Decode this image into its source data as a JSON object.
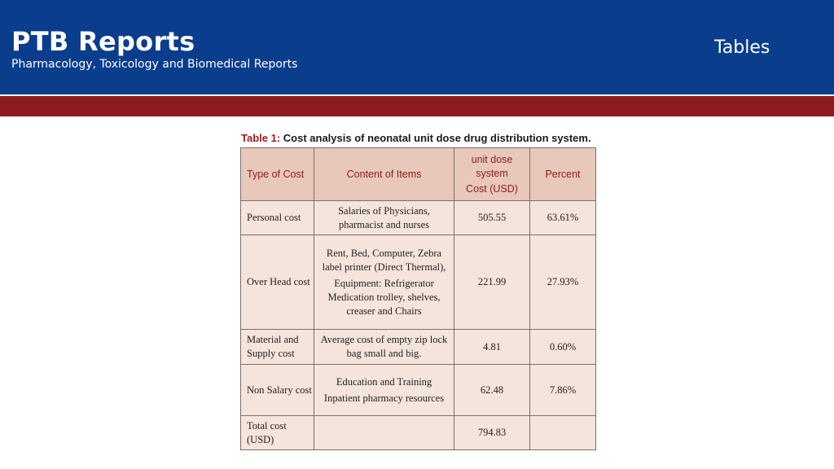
{
  "header": {
    "brand_title": "PTB Reports",
    "brand_subtitle": "Pharmacology, Toxicology and Biomedical Reports",
    "section_title": "Tables",
    "colors": {
      "header_blue": "#0a3d8c",
      "band_red": "#8e1b1f"
    }
  },
  "table": {
    "caption_label": "Table 1:",
    "caption_text": " Cost analysis of neonatal unit dose drug distribution system.",
    "columns": {
      "type": "Type of Cost",
      "content": "Content of Items",
      "unit_line1": "unit dose",
      "unit_line2": "system",
      "unit_line3": "Cost (USD)",
      "percent": "Percent"
    },
    "rows": [
      {
        "type": "Personal cost",
        "content": [
          "Salaries of Physicians, pharmacist and nurses"
        ],
        "cost": "505.55",
        "percent": "63.61%"
      },
      {
        "type": "Over Head cost",
        "content": [
          "Rent, Bed, Computer, Zebra label printer (Direct Thermal),",
          "Equipment: Refrigerator Medication trolley, shelves, creaser and Chairs"
        ],
        "cost": "221.99",
        "percent": "27.93%"
      },
      {
        "type": "Material and Supply cost",
        "content": [
          "Average cost of empty zip lock bag small and big."
        ],
        "cost": "4.81",
        "percent": "0.60%"
      },
      {
        "type": "Non Salary cost",
        "content": [
          "Education and Training",
          "Inpatient pharmacy resources"
        ],
        "cost": "62.48",
        "percent": "7.86%"
      },
      {
        "type": "Total cost (USD)",
        "content": [
          ""
        ],
        "cost": "794.83",
        "percent": ""
      }
    ]
  }
}
